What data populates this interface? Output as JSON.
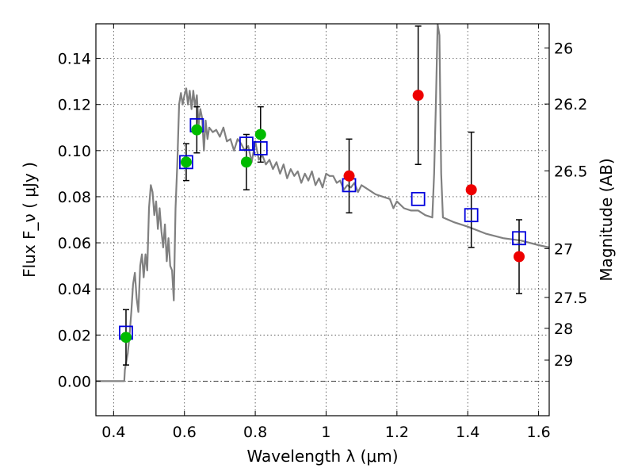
{
  "chart_data": {
    "type": "scatter",
    "xlabel": "Wavelength  λ (μm)",
    "ylabel": "Flux  F_ν  ( μJy )",
    "y2label": "Magnitude (AB)",
    "xlim": [
      0.35,
      1.63
    ],
    "ylim": [
      -0.015,
      0.155
    ],
    "x_ticks": [
      0.4,
      0.6,
      0.8,
      1.0,
      1.2,
      1.4,
      1.6
    ],
    "x_tick_labels": [
      "0.4",
      "0.6",
      "0.8",
      "1",
      "1.2",
      "1.4",
      "1.6"
    ],
    "y_ticks": [
      0.0,
      0.02,
      0.04,
      0.06,
      0.08,
      0.1,
      0.12,
      0.14
    ],
    "y_tick_labels": [
      "0.00",
      "0.02",
      "0.04",
      "0.06",
      "0.08",
      "0.10",
      "0.12",
      "0.14"
    ],
    "y2_ticks": [
      {
        "label": "26",
        "flux": 0.1445
      },
      {
        "label": "26.2",
        "flux": 0.1202
      },
      {
        "label": "26.5",
        "flux": 0.0912
      },
      {
        "label": "27",
        "flux": 0.0575
      },
      {
        "label": "27.5",
        "flux": 0.0363
      },
      {
        "label": "28",
        "flux": 0.0229
      },
      {
        "label": "29",
        "flux": 0.0091
      }
    ],
    "grid": true,
    "colors": {
      "model": "#808080",
      "green_points": "#00bb00",
      "red_points": "#ee0000",
      "model_photometry": "#0000dd",
      "errorbars": "#000000"
    },
    "model_spectrum": {
      "x": [
        0.35,
        0.43,
        0.432,
        0.44,
        0.445,
        0.45,
        0.455,
        0.46,
        0.465,
        0.47,
        0.475,
        0.48,
        0.485,
        0.49,
        0.495,
        0.5,
        0.505,
        0.51,
        0.515,
        0.52,
        0.525,
        0.53,
        0.535,
        0.54,
        0.545,
        0.55,
        0.555,
        0.56,
        0.565,
        0.57,
        0.575,
        0.58,
        0.585,
        0.59,
        0.595,
        0.6,
        0.605,
        0.61,
        0.615,
        0.62,
        0.625,
        0.63,
        0.635,
        0.64,
        0.645,
        0.65,
        0.655,
        0.66,
        0.665,
        0.67,
        0.68,
        0.69,
        0.7,
        0.71,
        0.72,
        0.73,
        0.74,
        0.75,
        0.76,
        0.77,
        0.78,
        0.79,
        0.8,
        0.81,
        0.82,
        0.83,
        0.84,
        0.85,
        0.86,
        0.87,
        0.88,
        0.89,
        0.9,
        0.91,
        0.92,
        0.93,
        0.94,
        0.95,
        0.96,
        0.97,
        0.98,
        0.99,
        1.0,
        1.01,
        1.02,
        1.03,
        1.04,
        1.05,
        1.06,
        1.07,
        1.08,
        1.09,
        1.1,
        1.12,
        1.14,
        1.16,
        1.18,
        1.19,
        1.2,
        1.22,
        1.24,
        1.26,
        1.28,
        1.3,
        1.305,
        1.31,
        1.315,
        1.32,
        1.325,
        1.33,
        1.36,
        1.4,
        1.45,
        1.5,
        1.55,
        1.6,
        1.63
      ],
      "y": [
        0.0,
        0.0,
        0.005,
        0.012,
        0.02,
        0.03,
        0.042,
        0.047,
        0.036,
        0.03,
        0.05,
        0.055,
        0.045,
        0.055,
        0.048,
        0.075,
        0.085,
        0.082,
        0.072,
        0.078,
        0.066,
        0.075,
        0.065,
        0.058,
        0.068,
        0.052,
        0.062,
        0.05,
        0.048,
        0.035,
        0.075,
        0.095,
        0.12,
        0.125,
        0.12,
        0.124,
        0.127,
        0.12,
        0.126,
        0.118,
        0.126,
        0.119,
        0.124,
        0.111,
        0.118,
        0.114,
        0.1,
        0.113,
        0.105,
        0.11,
        0.108,
        0.109,
        0.106,
        0.11,
        0.104,
        0.105,
        0.1,
        0.105,
        0.103,
        0.1,
        0.102,
        0.095,
        0.104,
        0.096,
        0.098,
        0.094,
        0.096,
        0.092,
        0.095,
        0.09,
        0.094,
        0.088,
        0.092,
        0.089,
        0.091,
        0.086,
        0.09,
        0.087,
        0.091,
        0.085,
        0.088,
        0.084,
        0.09,
        0.089,
        0.089,
        0.086,
        0.087,
        0.083,
        0.085,
        0.084,
        0.086,
        0.082,
        0.085,
        0.083,
        0.081,
        0.08,
        0.079,
        0.075,
        0.078,
        0.075,
        0.074,
        0.074,
        0.072,
        0.071,
        0.09,
        0.12,
        0.155,
        0.15,
        0.09,
        0.071,
        0.069,
        0.067,
        0.064,
        0.062,
        0.061,
        0.059,
        0.058
      ]
    },
    "series": [
      {
        "marker": "circle",
        "color": "green",
        "x": [
          0.435,
          0.605,
          0.635,
          0.775,
          0.815
        ],
        "y": [
          0.019,
          0.095,
          0.109,
          0.095,
          0.107
        ],
        "err": [
          0.012,
          0.008,
          0.01,
          0.012,
          0.012
        ]
      },
      {
        "marker": "circle",
        "color": "red",
        "x": [
          1.065,
          1.26,
          1.41,
          1.545
        ],
        "y": [
          0.089,
          0.124,
          0.083,
          0.054
        ],
        "err": [
          0.016,
          0.03,
          0.025,
          0.016
        ]
      },
      {
        "marker": "open-square",
        "color": "blue",
        "x": [
          0.435,
          0.605,
          0.635,
          0.775,
          0.815,
          1.065,
          1.26,
          1.41,
          1.545
        ],
        "y": [
          0.021,
          0.095,
          0.111,
          0.103,
          0.101,
          0.085,
          0.079,
          0.072,
          0.062
        ]
      }
    ]
  }
}
